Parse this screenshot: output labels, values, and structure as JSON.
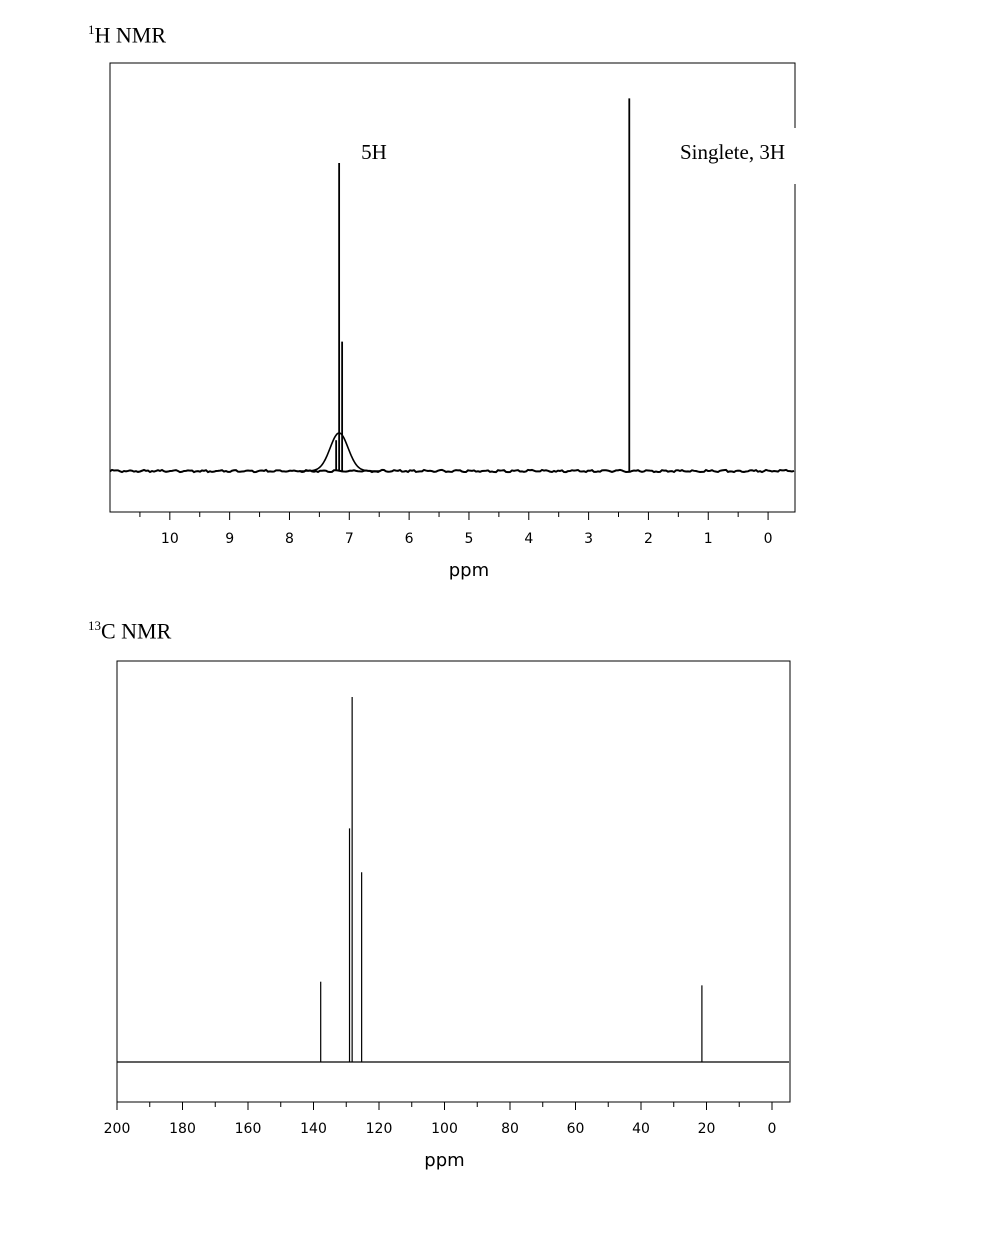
{
  "chart_data": [
    {
      "type": "line",
      "title_sup": "1",
      "title_main": "H NMR",
      "xlabel": "ppm",
      "ylabel": "",
      "xlim": [
        11,
        -0.45
      ],
      "xaxis_reversed": true,
      "ticks": [
        10,
        9,
        8,
        7,
        6,
        5,
        4,
        3,
        2,
        1,
        0
      ],
      "tick_labels": [
        "10",
        "9",
        "8",
        "7",
        "6",
        "5",
        "4",
        "3",
        "2",
        "1",
        "0"
      ],
      "peaks": [
        {
          "ppm": 7.17,
          "height": 1.0
        },
        {
          "ppm": 7.12,
          "height": 0.42
        },
        {
          "ppm": 7.22,
          "height": 0.1
        },
        {
          "ppm": 2.32,
          "height": 1.21
        }
      ],
      "annotations": [
        {
          "text": "5H",
          "ppm": 7.17
        },
        {
          "text": "Singlete, 3H",
          "ppm": 2.32
        }
      ],
      "grid": false
    },
    {
      "type": "line",
      "title_sup": "13",
      "title_main": "C NMR",
      "xlabel": "ppm",
      "ylabel": "",
      "xlim": [
        200,
        -5.5
      ],
      "xaxis_reversed": true,
      "ticks": [
        200,
        180,
        160,
        140,
        120,
        100,
        80,
        60,
        40,
        20,
        0
      ],
      "tick_labels": [
        "200",
        "180",
        "160",
        "140",
        "120",
        "100",
        "80",
        "60",
        "40",
        "20",
        "0"
      ],
      "peaks": [
        {
          "ppm": 137.8,
          "height": 0.22
        },
        {
          "ppm": 129.0,
          "height": 0.64
        },
        {
          "ppm": 128.2,
          "height": 1.0
        },
        {
          "ppm": 125.3,
          "height": 0.52
        },
        {
          "ppm": 21.4,
          "height": 0.21
        }
      ],
      "annotations": [],
      "grid": false
    }
  ]
}
